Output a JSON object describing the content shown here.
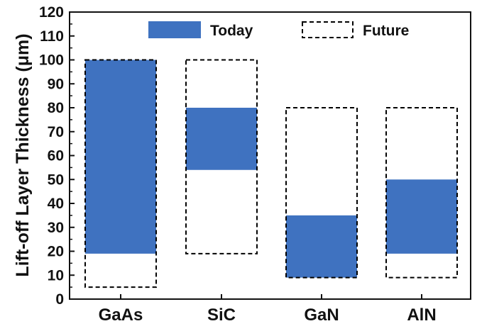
{
  "chart_data": {
    "type": "bar",
    "subtype": "floating range bars",
    "categories": [
      "GaAs",
      "SiC",
      "GaN",
      "AlN"
    ],
    "series": [
      {
        "name": "Today",
        "style": "filled",
        "color": "#3f72c0",
        "ranges": [
          [
            19,
            100
          ],
          [
            54,
            80
          ],
          [
            9,
            35
          ],
          [
            19,
            50
          ]
        ]
      },
      {
        "name": "Future",
        "style": "dashed-outline",
        "color": "#000000",
        "ranges": [
          [
            5,
            100
          ],
          [
            19,
            100
          ],
          [
            9,
            80
          ],
          [
            9,
            80
          ]
        ]
      }
    ],
    "ylabel": "Lift-off Layer Thickness (μm)",
    "xlabel": "",
    "ylim": [
      0,
      120
    ],
    "yticks": [
      "0",
      "10",
      "20",
      "30",
      "40",
      "50",
      "60",
      "70",
      "80",
      "90",
      "100",
      "110",
      "120"
    ],
    "grid": false,
    "legend_position": "top"
  }
}
